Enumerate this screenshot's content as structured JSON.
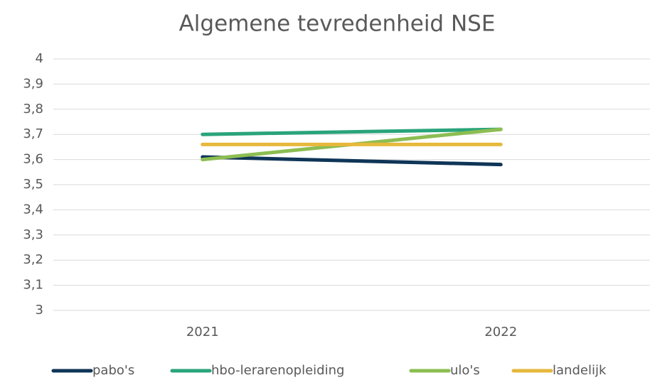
{
  "chart_data": {
    "type": "line",
    "title": "Algemene tevredenheid NSE",
    "categories": [
      "2021",
      "2022"
    ],
    "series": [
      {
        "name": "pabo's",
        "color": "#0f3557",
        "values": [
          3.61,
          3.58
        ]
      },
      {
        "name": "hbo-lerarenopleiding",
        "color": "#2aa47a",
        "values": [
          3.7,
          3.72
        ]
      },
      {
        "name": "ulo's",
        "color": "#8cbd52",
        "values": [
          3.6,
          3.72
        ]
      },
      {
        "name": "landelijk",
        "color": "#e6b83c",
        "values": [
          3.66,
          3.66
        ]
      }
    ],
    "ylim": [
      3,
      4
    ],
    "yticks": [
      3,
      {
        "value": 3.1,
        "label": "3,1"
      },
      {
        "value": 3.2,
        "label": "3,2"
      },
      {
        "value": 3.3,
        "label": "3,3"
      },
      {
        "value": 3.4,
        "label": "3,4"
      },
      {
        "value": 3.5,
        "label": "3,5"
      },
      {
        "value": 3.6,
        "label": "3,6"
      },
      {
        "value": 3.7,
        "label": "3,7"
      },
      {
        "value": 3.8,
        "label": "3,8"
      },
      {
        "value": 3.9,
        "label": "3,9"
      },
      4
    ],
    "grid": true,
    "legend": "bottom"
  }
}
